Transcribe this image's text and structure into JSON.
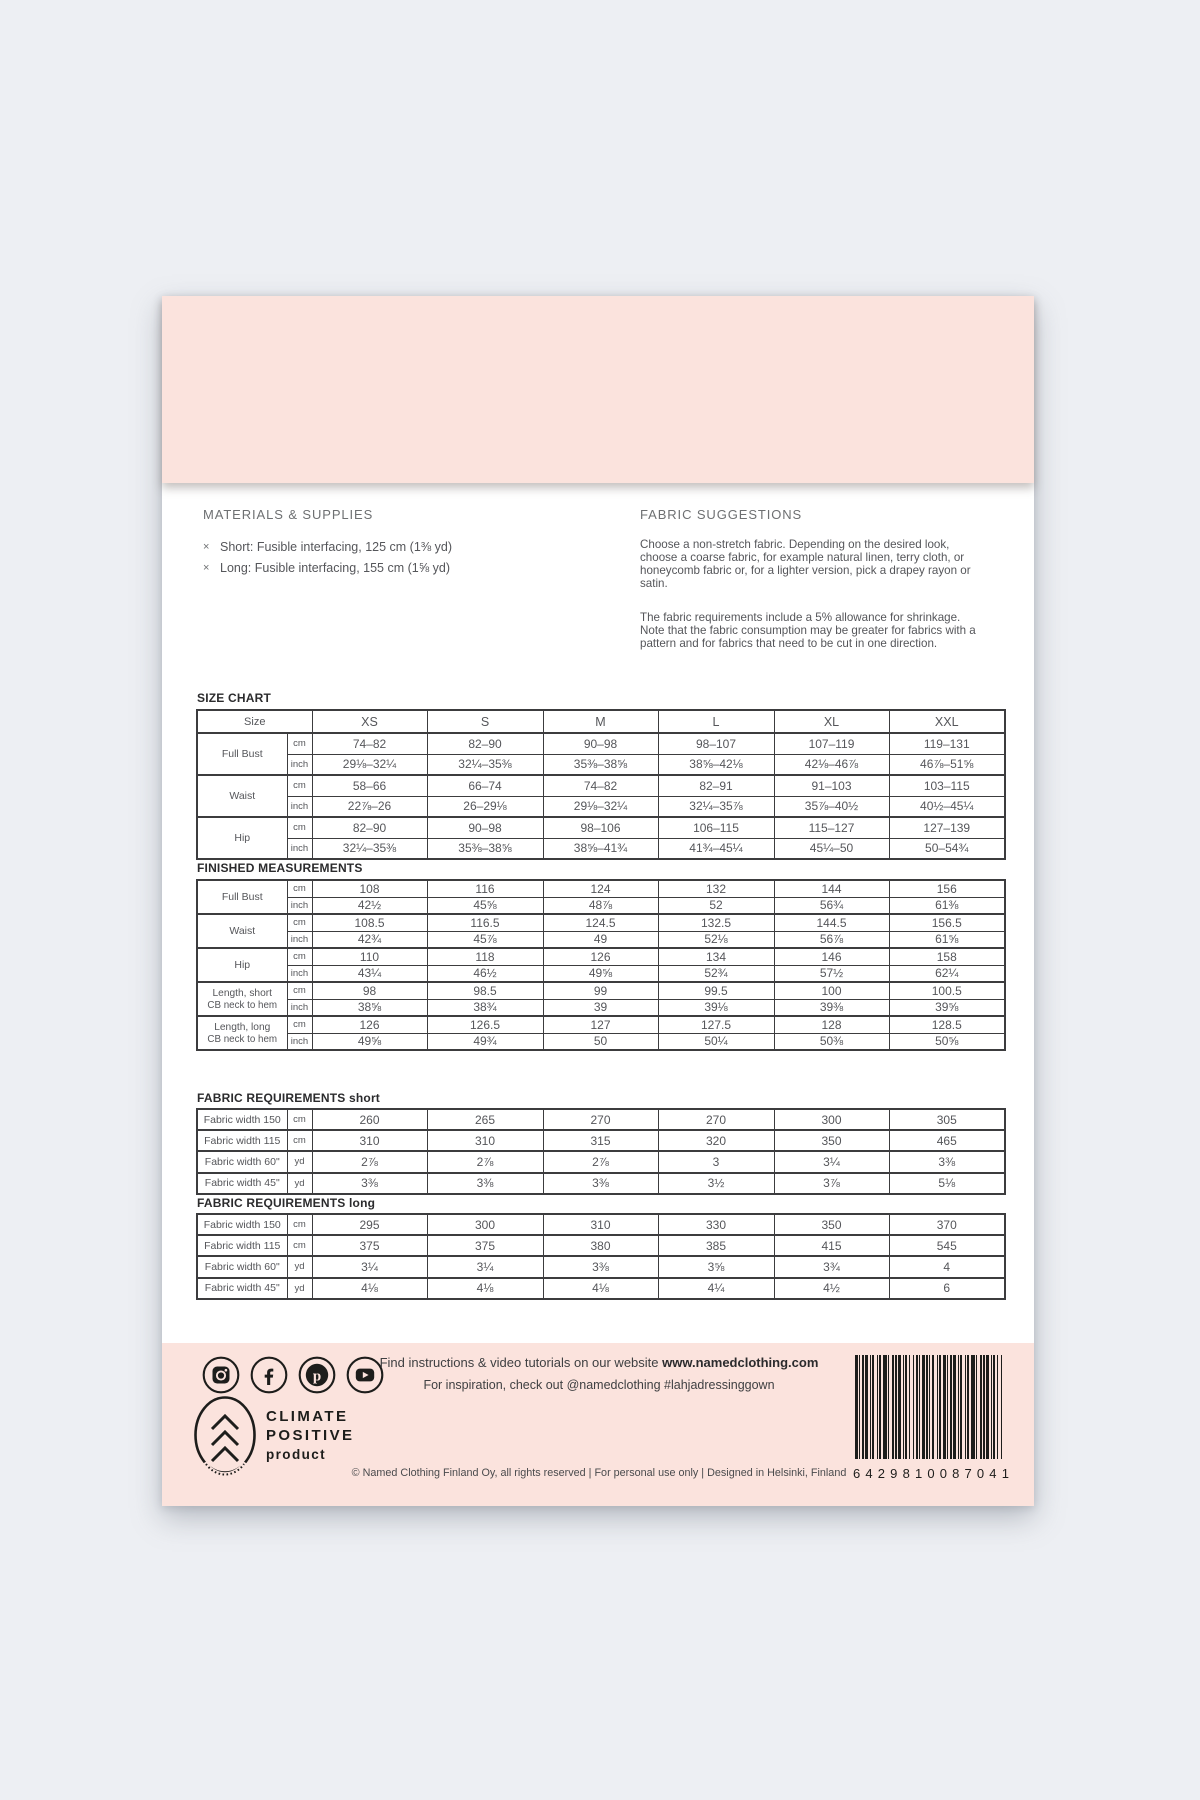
{
  "colors": {
    "cover_pink": "#fbe3dd",
    "page_background": "#ffffff",
    "canvas_background": "#edeff3",
    "body_text": "#55565a",
    "heading_text": "#6e7072",
    "table_border": "#3c3c3e",
    "ink": "#1d1d1b"
  },
  "document": {
    "materials": {
      "title": "MATERIALS & SUPPLIES",
      "bullet": "×",
      "items": [
        "Short: Fusible interfacing, 125 cm (1⅜ yd)",
        "Long: Fusible interfacing, 155 cm (1⅝ yd)"
      ]
    },
    "fabric_suggestions": {
      "title": "FABRIC SUGGESTIONS",
      "paragraphs": [
        "Choose a non-stretch fabric. Depending on the desired look, choose a coarse fabric, for example natural linen, terry cloth, or honeycomb fabric or, for a lighter version, pick a drapey rayon or satin.",
        "The fabric requirements include a 5% allowance for shrinkage. Note that the fabric consumption may be greater for fabrics with a pattern and for fabrics that need to be cut in one direction."
      ]
    },
    "size_chart": {
      "title": "SIZE CHART",
      "corner_label": "Size",
      "sizes": [
        "XS",
        "S",
        "M",
        "L",
        "XL",
        "XXL"
      ],
      "groups": [
        {
          "label": "Full Bust",
          "rows": [
            {
              "unit": "cm",
              "values": [
                "74–82",
                "82–90",
                "90–98",
                "98–107",
                "107–119",
                "119–131"
              ]
            },
            {
              "unit": "inch",
              "values": [
                "29⅛–32¼",
                "32¼–35⅜",
                "35⅜–38⅝",
                "38⅝–42⅛",
                "42⅛–46⅞",
                "46⅞–51⅝"
              ]
            }
          ]
        },
        {
          "label": "Waist",
          "rows": [
            {
              "unit": "cm",
              "values": [
                "58–66",
                "66–74",
                "74–82",
                "82–91",
                "91–103",
                "103–115"
              ]
            },
            {
              "unit": "inch",
              "values": [
                "22⅞–26",
                "26–29⅛",
                "29⅛–32¼",
                "32¼–35⅞",
                "35⅞–40½",
                "40½–45¼"
              ]
            }
          ]
        },
        {
          "label": "Hip",
          "rows": [
            {
              "unit": "cm",
              "values": [
                "82–90",
                "90–98",
                "98–106",
                "106–115",
                "115–127",
                "127–139"
              ]
            },
            {
              "unit": "inch",
              "values": [
                "32¼–35⅜",
                "35⅜–38⅝",
                "38⅝–41¾",
                "41¾–45¼",
                "45¼–50",
                "50–54¾"
              ]
            }
          ]
        }
      ]
    },
    "finished_measurements": {
      "title": "FINISHED MEASUREMENTS",
      "groups": [
        {
          "label": "Full Bust",
          "rows": [
            {
              "unit": "cm",
              "values": [
                "108",
                "116",
                "124",
                "132",
                "144",
                "156"
              ]
            },
            {
              "unit": "inch",
              "values": [
                "42½",
                "45⅝",
                "48⅞",
                "52",
                "56¾",
                "61⅜"
              ]
            }
          ]
        },
        {
          "label": "Waist",
          "rows": [
            {
              "unit": "cm",
              "values": [
                "108.5",
                "116.5",
                "124.5",
                "132.5",
                "144.5",
                "156.5"
              ]
            },
            {
              "unit": "inch",
              "values": [
                "42¾",
                "45⅞",
                "49",
                "52⅛",
                "56⅞",
                "61⅝"
              ]
            }
          ]
        },
        {
          "label": "Hip",
          "rows": [
            {
              "unit": "cm",
              "values": [
                "110",
                "118",
                "126",
                "134",
                "146",
                "158"
              ]
            },
            {
              "unit": "inch",
              "values": [
                "43¼",
                "46½",
                "49⅝",
                "52¾",
                "57½",
                "62¼"
              ]
            }
          ]
        },
        {
          "label": "Length, short",
          "label2": "CB neck to hem",
          "rows": [
            {
              "unit": "cm",
              "values": [
                "98",
                "98.5",
                "99",
                "99.5",
                "100",
                "100.5"
              ]
            },
            {
              "unit": "inch",
              "values": [
                "38⅝",
                "38¾",
                "39",
                "39⅛",
                "39⅜",
                "39⅝"
              ]
            }
          ]
        },
        {
          "label": "Length, long",
          "label2": "CB neck to hem",
          "rows": [
            {
              "unit": "cm",
              "values": [
                "126",
                "126.5",
                "127",
                "127.5",
                "128",
                "128.5"
              ]
            },
            {
              "unit": "inch",
              "values": [
                "49⅝",
                "49¾",
                "50",
                "50¼",
                "50⅜",
                "50⅝"
              ]
            }
          ]
        }
      ]
    },
    "fabric_requirements_short": {
      "title": "FABRIC REQUIREMENTS short",
      "rows": [
        {
          "label": "Fabric width 150",
          "unit": "cm",
          "values": [
            "260",
            "265",
            "270",
            "270",
            "300",
            "305"
          ]
        },
        {
          "label": "Fabric width 115",
          "unit": "cm",
          "values": [
            "310",
            "310",
            "315",
            "320",
            "350",
            "465"
          ]
        },
        {
          "label": "Fabric width 60\"",
          "unit": "yd",
          "values": [
            "2⅞",
            "2⅞",
            "2⅞",
            "3",
            "3¼",
            "3⅜"
          ]
        },
        {
          "label": "Fabric width 45\"",
          "unit": "yd",
          "values": [
            "3⅜",
            "3⅜",
            "3⅜",
            "3½",
            "3⅞",
            "5⅛"
          ]
        }
      ]
    },
    "fabric_requirements_long": {
      "title": "FABRIC REQUIREMENTS long",
      "rows": [
        {
          "label": "Fabric width 150",
          "unit": "cm",
          "values": [
            "295",
            "300",
            "310",
            "330",
            "350",
            "370"
          ]
        },
        {
          "label": "Fabric width 115",
          "unit": "cm",
          "values": [
            "375",
            "375",
            "380",
            "385",
            "415",
            "545"
          ]
        },
        {
          "label": "Fabric width 60\"",
          "unit": "yd",
          "values": [
            "3¼",
            "3¼",
            "3⅜",
            "3⅝",
            "3¾",
            "4"
          ]
        },
        {
          "label": "Fabric width 45\"",
          "unit": "yd",
          "values": [
            "4⅛",
            "4⅛",
            "4⅛",
            "4¼",
            "4½",
            "6"
          ]
        }
      ]
    },
    "footer": {
      "social": [
        "instagram",
        "facebook",
        "pinterest",
        "youtube"
      ],
      "website_line_prefix": "Find instructions & video tutorials on our website ",
      "website_line_bold": "www.namedclothing.com",
      "inspiration_line": "For inspiration, check out @namedclothing #lahjadressinggown",
      "climate_badge": {
        "line1": "CLIMATE",
        "line2": "POSITIVE",
        "line3": "product"
      },
      "copyright": "© Named Clothing Finland Oy, all rights reserved | For personal use only | Designed in Helsinki, Finland",
      "barcode_digits": "6429810087041"
    }
  }
}
